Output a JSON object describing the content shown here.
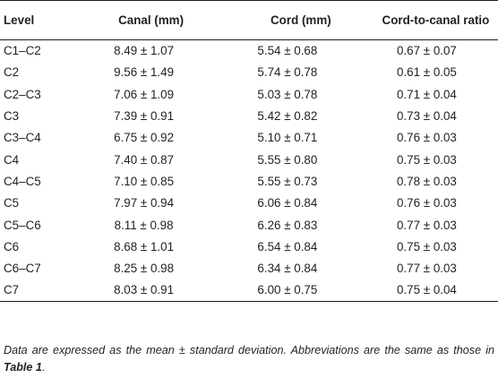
{
  "table": {
    "headers": {
      "level": "Level",
      "canal": "Canal (mm)",
      "cord": "Cord (mm)",
      "ratio": "Cord-to-canal ratio"
    },
    "rows": [
      {
        "level": "C1–C2",
        "canal": "8.49 ± 1.07",
        "cord": "5.54 ± 0.68",
        "ratio": "0.67 ± 0.07"
      },
      {
        "level": "C2",
        "canal": "9.56 ± 1.49",
        "cord": "5.74 ± 0.78",
        "ratio": "0.61 ± 0.05"
      },
      {
        "level": "C2–C3",
        "canal": "7.06 ± 1.09",
        "cord": "5.03 ± 0.78",
        "ratio": "0.71 ± 0.04"
      },
      {
        "level": "C3",
        "canal": "7.39 ± 0.91",
        "cord": "5.42 ± 0.82",
        "ratio": "0.73 ± 0.04"
      },
      {
        "level": "C3–C4",
        "canal": "6.75 ± 0.92",
        "cord": "5.10 ± 0.71",
        "ratio": "0.76 ± 0.03"
      },
      {
        "level": "C4",
        "canal": "7.40 ± 0.87",
        "cord": "5.55 ± 0.80",
        "ratio": "0.75 ± 0.03"
      },
      {
        "level": "C4–C5",
        "canal": "7.10 ± 0.85",
        "cord": "5.55 ± 0.73",
        "ratio": "0.78 ± 0.03"
      },
      {
        "level": "C5",
        "canal": "7.97 ± 0.94",
        "cord": "6.06 ± 0.84",
        "ratio": "0.76 ± 0.03"
      },
      {
        "level": "C5–C6",
        "canal": "8.11 ± 0.98",
        "cord": "6.26 ± 0.83",
        "ratio": "0.77 ± 0.03"
      },
      {
        "level": "C6",
        "canal": "8.68 ± 1.01",
        "cord": "6.54 ± 0.84",
        "ratio": "0.75 ± 0.03"
      },
      {
        "level": "C6–C7",
        "canal": "8.25 ± 0.98",
        "cord": "6.34 ± 0.84",
        "ratio": "0.77 ± 0.03"
      },
      {
        "level": "C7",
        "canal": "8.03 ± 0.91",
        "cord": "6.00 ± 0.75",
        "ratio": "0.75 ± 0.04"
      }
    ]
  },
  "footnote": {
    "text_before": "Data are expressed as the mean ± standard deviation. Abbreviations are the same as those in ",
    "ref": "Table 1",
    "text_after": "."
  }
}
